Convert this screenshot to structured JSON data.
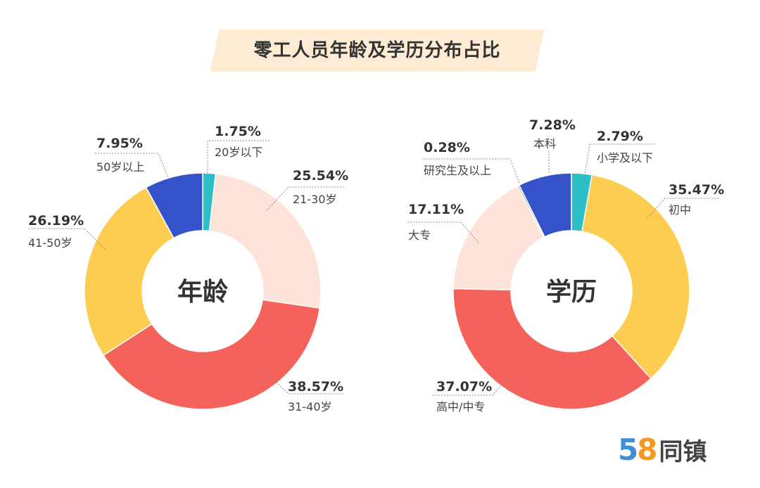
{
  "title": "零工人员年龄及学历分布占比",
  "brand": {
    "number_5": "5",
    "number_8": "8",
    "name": "同镇"
  },
  "colors": {
    "cyan": "#2bbfc7",
    "peach": "#fde3da",
    "red": "#f5625b",
    "yellow": "#fccd50",
    "blue": "#3552c9",
    "gray": "#b9b9b9"
  },
  "chart_data": [
    {
      "type": "pie",
      "variant": "donut",
      "center_label": "年龄",
      "slices": [
        {
          "label": "20岁以下",
          "value": 1.75,
          "display": "1.75%",
          "color": "#2bbfc7"
        },
        {
          "label": "21-30岁",
          "value": 25.54,
          "display": "25.54%",
          "color": "#fde3da"
        },
        {
          "label": "31-40岁",
          "value": 38.57,
          "display": "38.57%",
          "color": "#f5625b"
        },
        {
          "label": "41-50岁",
          "value": 26.19,
          "display": "26.19%",
          "color": "#fccd50"
        },
        {
          "label": "50岁以上",
          "value": 7.95,
          "display": "7.95%",
          "color": "#3552c9"
        }
      ]
    },
    {
      "type": "pie",
      "variant": "donut",
      "center_label": "学历",
      "slices": [
        {
          "label": "小学及以下",
          "value": 2.79,
          "display": "2.79%",
          "color": "#2bbfc7"
        },
        {
          "label": "初中",
          "value": 35.47,
          "display": "35.47%",
          "color": "#fccd50"
        },
        {
          "label": "高中/中专",
          "value": 37.07,
          "display": "37.07%",
          "color": "#f5625b"
        },
        {
          "label": "大专",
          "value": 17.11,
          "display": "17.11%",
          "color": "#fde3da"
        },
        {
          "label": "研究生及以上",
          "value": 0.28,
          "display": "0.28%",
          "color": "#b9b9b9"
        },
        {
          "label": "本科",
          "value": 7.28,
          "display": "7.28%",
          "color": "#3552c9"
        }
      ]
    }
  ]
}
